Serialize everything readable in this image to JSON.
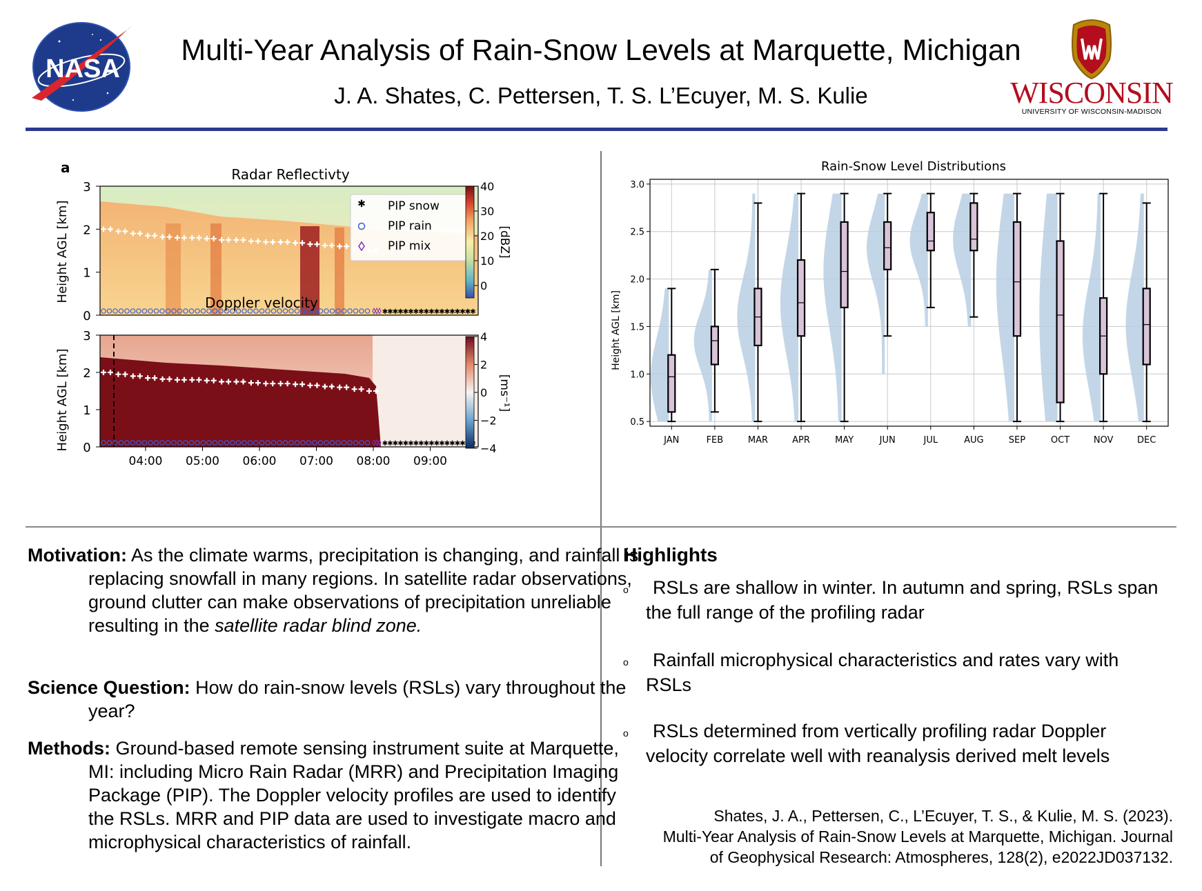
{
  "header": {
    "title": "Multi-Year Analysis of Rain-Snow Levels at Marquette, Michigan",
    "authors": "J. A. Shates, C. Pettersen, T. S. L’Ecuyer, M. S. Kulie",
    "left_logo": {
      "text": "NASA",
      "icon": "nasa-meatball-logo"
    },
    "right_logo": {
      "wordmark": "WISCONSIN",
      "subtitle": "UNIVERSITY OF WISCONSIN-MADISON",
      "icon": "uw-crest-logo"
    },
    "rule_color": "#2b3a8f"
  },
  "chart_data": [
    {
      "type": "heatmap",
      "panel_label": "a",
      "title": "Radar Reflectivty",
      "ylabel": "Height AGL [km]",
      "y_ticks": [
        "0",
        "1",
        "2",
        "3"
      ],
      "ylim": [
        0,
        3
      ],
      "x_ticks": [
        "04:00",
        "05:00",
        "06:00",
        "07:00",
        "08:00",
        "09:00"
      ],
      "colorbar": {
        "label": "[dBZ]",
        "ticks": [
          "0",
          "10",
          "20",
          "30",
          "40"
        ],
        "range": [
          -5,
          40
        ]
      },
      "legend": {
        "placement": "top-right",
        "entries": [
          "PIP snow",
          "PIP rain",
          "PIP mix"
        ]
      },
      "rsl_km": [
        2.0,
        1.95,
        1.9,
        1.85,
        1.82,
        1.8,
        1.8,
        1.78,
        1.75,
        1.75,
        1.72,
        1.7,
        1.7,
        1.68,
        1.65,
        1.62,
        1.6,
        1.55,
        1.5
      ],
      "pip_phase": {
        "rain_until": "07:00",
        "mix_around": "07:00",
        "snow_after": "07:00"
      }
    },
    {
      "type": "heatmap",
      "title": "Doppler velocity",
      "ylabel": "Height AGL [km]",
      "y_ticks": [
        "0",
        "1",
        "2",
        "3"
      ],
      "ylim": [
        0,
        3
      ],
      "x_ticks": [
        "04:00",
        "05:00",
        "06:00",
        "07:00",
        "08:00",
        "09:00"
      ],
      "colorbar": {
        "label": "[ms⁻¹]",
        "ticks": [
          "4",
          "2",
          "0",
          "−2",
          "−4"
        ],
        "range": [
          -4,
          4
        ]
      },
      "rsl_km": [
        2.0,
        1.95,
        1.9,
        1.85,
        1.82,
        1.8,
        1.8,
        1.78,
        1.75,
        1.75,
        1.72,
        1.7,
        1.7,
        1.68,
        1.65,
        1.62,
        1.6,
        1.55,
        1.5
      ]
    },
    {
      "type": "violin-box",
      "title": "Rain-Snow Level  Distributions",
      "xlabel": "",
      "ylabel": "Height AGL [km]",
      "ylim": [
        0.45,
        3.05
      ],
      "y_ticks": [
        "0.5",
        "1.0",
        "1.5",
        "2.0",
        "2.5",
        "3.0"
      ],
      "categories": [
        "JAN",
        "FEB",
        "MAR",
        "APR",
        "MAY",
        "JUN",
        "JUL",
        "AUG",
        "SEP",
        "OCT",
        "NOV",
        "DEC"
      ],
      "box": [
        {
          "whislo": 0.5,
          "q1": 0.6,
          "med": 0.97,
          "q3": 1.2,
          "whishi": 1.9
        },
        {
          "whislo": 0.6,
          "q1": 1.1,
          "med": 1.35,
          "q3": 1.5,
          "whishi": 2.1
        },
        {
          "whislo": 0.5,
          "q1": 1.3,
          "med": 1.6,
          "q3": 1.9,
          "whishi": 2.8
        },
        {
          "whislo": 0.5,
          "q1": 1.4,
          "med": 1.75,
          "q3": 2.2,
          "whishi": 2.9
        },
        {
          "whislo": 0.5,
          "q1": 1.7,
          "med": 2.08,
          "q3": 2.6,
          "whishi": 2.9
        },
        {
          "whislo": 1.4,
          "q1": 2.1,
          "med": 2.33,
          "q3": 2.6,
          "whishi": 2.9
        },
        {
          "whislo": 1.7,
          "q1": 2.3,
          "med": 2.4,
          "q3": 2.7,
          "whishi": 2.9
        },
        {
          "whislo": 1.6,
          "q1": 2.3,
          "med": 2.42,
          "q3": 2.8,
          "whishi": 2.9
        },
        {
          "whislo": 0.5,
          "q1": 1.4,
          "med": 1.97,
          "q3": 2.6,
          "whishi": 2.9
        },
        {
          "whislo": 0.5,
          "q1": 0.7,
          "med": 1.62,
          "q3": 2.4,
          "whishi": 2.9
        },
        {
          "whislo": 0.5,
          "q1": 1.0,
          "med": 1.4,
          "q3": 1.8,
          "whishi": 2.9
        },
        {
          "whislo": 0.5,
          "q1": 1.1,
          "med": 1.52,
          "q3": 1.9,
          "whishi": 2.8
        }
      ],
      "violin_range": [
        [
          0.5,
          1.9
        ],
        [
          0.5,
          2.1
        ],
        [
          0.5,
          2.9
        ],
        [
          0.5,
          2.9
        ],
        [
          0.5,
          2.9
        ],
        [
          1.0,
          2.9
        ],
        [
          1.5,
          2.9
        ],
        [
          1.5,
          2.9
        ],
        [
          0.5,
          2.9
        ],
        [
          0.5,
          2.9
        ],
        [
          0.5,
          2.9
        ],
        [
          0.5,
          2.9
        ]
      ],
      "grid": true,
      "colors": {
        "box": "#d8c3d8",
        "violin": "#b9cfe3"
      }
    }
  ],
  "left_column": {
    "motivation": {
      "lead": "Motivation:",
      "text": " As the climate warms, precipitation is changing, and rainfall is replacing snowfall in many regions. In satellite radar observations, ground clutter can make observations of precipitation unreliable resulting in the ",
      "emphasis": "satellite radar blind zone."
    },
    "science": {
      "lead": "Science Question:",
      "text": " How do rain-snow levels (RSLs) vary throughout the year?"
    },
    "methods": {
      "lead": "Methods:",
      "text": " Ground-based remote sensing instrument suite at Marquette, MI: including Micro Rain Radar (MRR) and Precipitation Imaging Package (PIP). The Doppler velocity profiles are used to identify the RSLs. MRR and PIP data are used to investigate macro and microphysical characteristics of rainfall."
    }
  },
  "right_column": {
    "highlights_title": "Highlights",
    "bullet": "o",
    "highlights": [
      "RSLs are shallow in winter. In autumn and spring, RSLs span the full range of the profiling radar",
      "Rainfall microphysical characteristics and rates vary with RSLs",
      "RSLs determined from vertically profiling radar Doppler velocity correlate well with reanalysis derived melt levels"
    ],
    "citation_lines": [
      "Shates, J. A., Pettersen, C., L’Ecuyer, T. S., & Kulie, M. S. (2023).",
      "Multi-Year Analysis of Rain-Snow Levels at Marquette, Michigan. Journal",
      "of Geophysical Research: Atmospheres, 128(2), e2022JD037132."
    ]
  }
}
